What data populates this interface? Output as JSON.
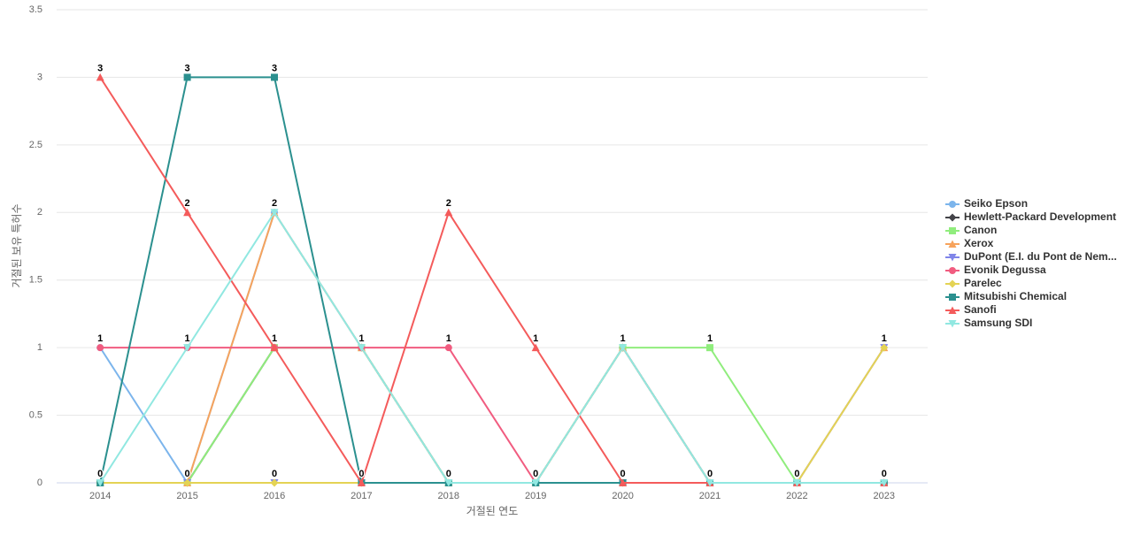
{
  "chart_data": {
    "type": "line",
    "x_label": "거절된 연도",
    "y_label": "거절된 보유 특허수",
    "categories": [
      "2014",
      "2015",
      "2016",
      "2017",
      "2018",
      "2019",
      "2020",
      "2021",
      "2022",
      "2023"
    ],
    "ylim": [
      0,
      3.5
    ],
    "yticks": [
      0,
      0.5,
      1,
      1.5,
      2,
      2.5,
      3,
      3.5
    ],
    "grid": true,
    "legend": "right",
    "series": [
      {
        "name": "Seiko Epson",
        "color": "#7cb5ec",
        "marker": "circle",
        "values": [
          1,
          0,
          2,
          1,
          0,
          0,
          1,
          0,
          0,
          0
        ]
      },
      {
        "name": "Hewlett-Packard Development",
        "color": "#434348",
        "marker": "diamond",
        "values": [
          0,
          0,
          1,
          1,
          0,
          0,
          1,
          0,
          0,
          0
        ]
      },
      {
        "name": "Canon",
        "color": "#90ed7d",
        "marker": "square",
        "values": [
          0,
          0,
          1,
          1,
          0,
          0,
          1,
          1,
          0,
          0
        ]
      },
      {
        "name": "Xerox",
        "color": "#f7a35c",
        "marker": "triangle",
        "values": [
          0,
          0,
          2,
          1,
          0,
          0,
          1,
          0,
          0,
          1
        ]
      },
      {
        "name": "DuPont (E.I. du Pont de Nem...",
        "color": "#8085e9",
        "marker": "triangle-down",
        "values": [
          0,
          0,
          0,
          0,
          0,
          0,
          0,
          0,
          0,
          1
        ]
      },
      {
        "name": "Evonik Degussa",
        "color": "#f15c80",
        "marker": "circle",
        "values": [
          1,
          1,
          1,
          1,
          1,
          0,
          0,
          0,
          0,
          0
        ]
      },
      {
        "name": "Parelec",
        "color": "#e4d354",
        "marker": "diamond",
        "values": [
          0,
          0,
          0,
          0,
          0,
          0,
          0,
          0,
          0,
          1
        ]
      },
      {
        "name": "Mitsubishi Chemical",
        "color": "#2b908f",
        "marker": "square",
        "values": [
          0,
          3,
          3,
          0,
          0,
          0,
          0,
          0,
          0,
          0
        ]
      },
      {
        "name": "Sanofi",
        "color": "#f45b5b",
        "marker": "triangle",
        "values": [
          3,
          2,
          1,
          0,
          2,
          1,
          0,
          0,
          0,
          0
        ]
      },
      {
        "name": "Samsung SDI",
        "color": "#91e8e1",
        "marker": "triangle-down",
        "values": [
          0,
          1,
          2,
          1,
          0,
          0,
          1,
          0,
          0,
          0
        ]
      }
    ]
  }
}
